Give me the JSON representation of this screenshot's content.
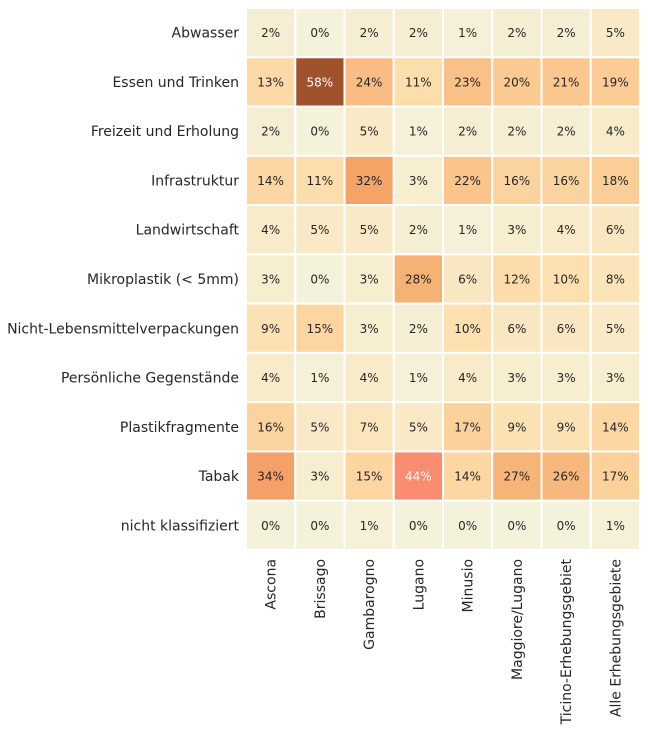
{
  "chart_data": {
    "type": "heatmap",
    "title": "",
    "xlabel": "",
    "ylabel": "",
    "value_format": "percent",
    "columns": [
      "Ascona",
      "Brissago",
      "Gambarogno",
      "Lugano",
      "Minusio",
      "Maggiore/Lugano",
      "Ticino-Erhebungsgebiet",
      "Alle Erhebungsgebiete"
    ],
    "rows": [
      "Abwasser",
      "Essen und Trinken",
      "Freizeit und Erholung",
      "Infrastruktur",
      "Landwirtschaft",
      "Mikroplastik (< 5mm)",
      "Nicht-Lebensmittelverpackungen",
      "Persönliche Gegenstände",
      "Plastikfragmente",
      "Tabak",
      "nicht klassifiziert"
    ],
    "values": [
      [
        2,
        0,
        2,
        2,
        1,
        2,
        2,
        5
      ],
      [
        13,
        58,
        24,
        11,
        23,
        20,
        21,
        19
      ],
      [
        2,
        0,
        5,
        1,
        2,
        2,
        2,
        4
      ],
      [
        14,
        11,
        32,
        3,
        22,
        16,
        16,
        18
      ],
      [
        4,
        5,
        5,
        2,
        1,
        3,
        4,
        6
      ],
      [
        3,
        0,
        3,
        28,
        6,
        12,
        10,
        8
      ],
      [
        9,
        15,
        3,
        2,
        10,
        6,
        6,
        5
      ],
      [
        4,
        1,
        4,
        1,
        4,
        3,
        3,
        3
      ],
      [
        16,
        5,
        7,
        5,
        17,
        9,
        9,
        14
      ],
      [
        34,
        3,
        15,
        44,
        14,
        27,
        26,
        17
      ],
      [
        0,
        0,
        1,
        0,
        0,
        0,
        0,
        1
      ]
    ],
    "colormap": "cream-to-brown",
    "colors": {
      "low": "#f5f2dc",
      "high": "#a0522d"
    },
    "grid": false,
    "legend": "none"
  }
}
